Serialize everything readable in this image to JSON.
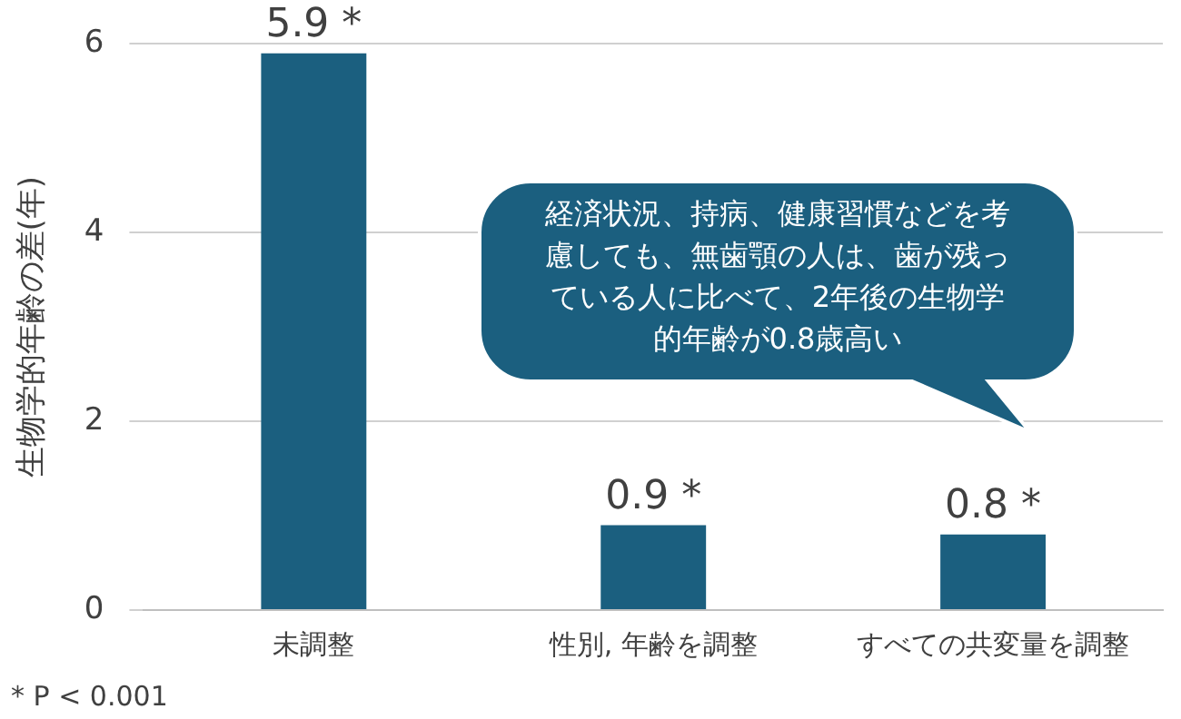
{
  "chart_data": {
    "type": "bar",
    "ylabel": "生物学的年齢の差(年)",
    "categories": [
      "未調整",
      "性別, 年齢を調整",
      "すべての共変量を調整"
    ],
    "values": [
      5.9,
      0.9,
      0.8
    ],
    "value_labels": [
      "5.9 *",
      "0.9 *",
      "0.8 *"
    ],
    "color": "#1b5f7f",
    "ylim": [
      0,
      6
    ],
    "yticks": [
      0,
      2,
      4,
      6
    ],
    "grid": "y",
    "legend": false,
    "annotations": [
      "経済状況、持病、健康習慣などを考慮しても、無歯顎の人は、歯が残っている人に比べて、2年後の生物学的年齢が0.8歳高い",
      "* P < 0.001"
    ]
  }
}
